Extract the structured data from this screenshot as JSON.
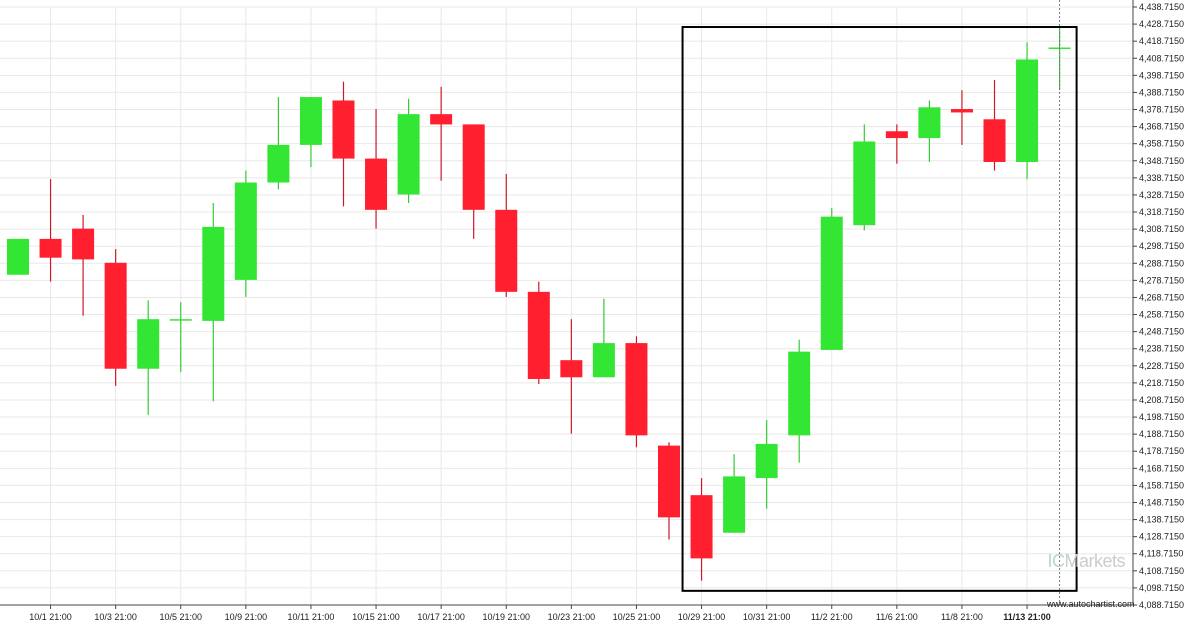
{
  "chart_data": {
    "type": "candlestick",
    "ylim": [
      4088.715,
      4438.715
    ],
    "y_ticks": [
      "4,088.7150",
      "4,098.7150",
      "4,108.7150",
      "4,118.7150",
      "4,128.7150",
      "4,138.7150",
      "4,148.7150",
      "4,158.7150",
      "4,168.7150",
      "4,178.7150",
      "4,188.7150",
      "4,198.7150",
      "4,208.7150",
      "4,218.7150",
      "4,228.7150",
      "4,238.7150",
      "4,248.7150",
      "4,258.7150",
      "4,268.7150",
      "4,278.7150",
      "4,288.7150",
      "4,298.7150",
      "4,308.7150",
      "4,318.7150",
      "4,328.7150",
      "4,338.7150",
      "4,348.7150",
      "4,358.7150",
      "4,368.7150",
      "4,378.7150",
      "4,388.7150",
      "4,398.7150",
      "4,408.7150",
      "4,418.7150",
      "4,428.7150",
      "4,438.7150"
    ],
    "x_tick_labels": [
      {
        "label": "10/1 21:00",
        "candle": 1
      },
      {
        "label": "10/3 21:00",
        "candle": 3
      },
      {
        "label": "10/5 21:00",
        "candle": 5
      },
      {
        "label": "10/9 21:00",
        "candle": 7
      },
      {
        "label": "10/11 21:00",
        "candle": 9
      },
      {
        "label": "10/15 21:00",
        "candle": 11
      },
      {
        "label": "10/17 21:00",
        "candle": 13
      },
      {
        "label": "10/19 21:00",
        "candle": 15
      },
      {
        "label": "10/23 21:00",
        "candle": 17
      },
      {
        "label": "10/25 21:00",
        "candle": 19
      },
      {
        "label": "10/29 21:00",
        "candle": 21
      },
      {
        "label": "10/31 21:00",
        "candle": 23
      },
      {
        "label": "11/2 21:00",
        "candle": 25
      },
      {
        "label": "11/6 21:00",
        "candle": 27
      },
      {
        "label": "11/8 21:00",
        "candle": 29
      },
      {
        "label": "11/13 21:00",
        "candle": 31,
        "bold": true
      }
    ],
    "candles": [
      {
        "open": 4282,
        "high": 4302,
        "low": 4282,
        "close": 4303
      },
      {
        "open": 4303,
        "high": 4338,
        "low": 4278,
        "close": 4292
      },
      {
        "open": 4309,
        "high": 4317,
        "low": 4258,
        "close": 4291
      },
      {
        "open": 4289,
        "high": 4297,
        "low": 4217,
        "close": 4227
      },
      {
        "open": 4227,
        "high": 4267,
        "low": 4200,
        "close": 4256
      },
      {
        "open": 4256,
        "high": 4266,
        "low": 4225,
        "close": 4256
      },
      {
        "open": 4255,
        "high": 4324,
        "low": 4208,
        "close": 4310
      },
      {
        "open": 4279,
        "high": 4343,
        "low": 4269,
        "close": 4336
      },
      {
        "open": 4336,
        "high": 4386,
        "low": 4332,
        "close": 4358
      },
      {
        "open": 4358,
        "high": 4386,
        "low": 4345,
        "close": 4386
      },
      {
        "open": 4384,
        "high": 4395,
        "low": 4322,
        "close": 4350
      },
      {
        "open": 4350,
        "high": 4379,
        "low": 4309,
        "close": 4320
      },
      {
        "open": 4329,
        "high": 4385,
        "low": 4324,
        "close": 4376
      },
      {
        "open": 4376,
        "high": 4392,
        "low": 4337,
        "close": 4370
      },
      {
        "open": 4370,
        "high": 4370,
        "low": 4303,
        "close": 4320
      },
      {
        "open": 4320,
        "high": 4341,
        "low": 4269,
        "close": 4272
      },
      {
        "open": 4272,
        "high": 4278,
        "low": 4218,
        "close": 4221
      },
      {
        "open": 4232,
        "high": 4256,
        "low": 4189,
        "close": 4222
      },
      {
        "open": 4222,
        "high": 4268,
        "low": 4222,
        "close": 4242
      },
      {
        "open": 4242,
        "high": 4246,
        "low": 4181,
        "close": 4188
      },
      {
        "open": 4182,
        "high": 4184,
        "low": 4127,
        "close": 4140
      },
      {
        "open": 4153,
        "high": 4163,
        "low": 4103,
        "close": 4116
      },
      {
        "open": 4131,
        "high": 4177,
        "low": 4131,
        "close": 4164
      },
      {
        "open": 4163,
        "high": 4197,
        "low": 4145,
        "close": 4183
      },
      {
        "open": 4188,
        "high": 4244,
        "low": 4172,
        "close": 4237
      },
      {
        "open": 4238,
        "high": 4321,
        "low": 4238,
        "close": 4316
      },
      {
        "open": 4311,
        "high": 4370,
        "low": 4308,
        "close": 4360
      },
      {
        "open": 4366,
        "high": 4370,
        "low": 4347,
        "close": 4362
      },
      {
        "open": 4362,
        "high": 4384,
        "low": 4348,
        "close": 4380
      },
      {
        "open": 4379,
        "high": 4390,
        "low": 4358,
        "close": 4377
      },
      {
        "open": 4373,
        "high": 4396,
        "low": 4343,
        "close": 4348
      },
      {
        "open": 4348,
        "high": 4418,
        "low": 4338,
        "close": 4408
      },
      {
        "open": 4415,
        "high": 4426,
        "low": 4390,
        "close": 4415
      }
    ],
    "highlight_box": {
      "candle_start": 21,
      "candle_end": 32,
      "y_top": 4427,
      "y_bottom": 4097
    },
    "colors": {
      "up": "#33e633",
      "down": "#ff1f2f",
      "wick_up": "#33cc33",
      "wick_down": "#cc1a26",
      "grid": "#e8e8e8",
      "box": "#000000"
    }
  },
  "watermark": {
    "ic": "IC",
    "text": "Markets"
  },
  "credit": "www.autochartist.com"
}
